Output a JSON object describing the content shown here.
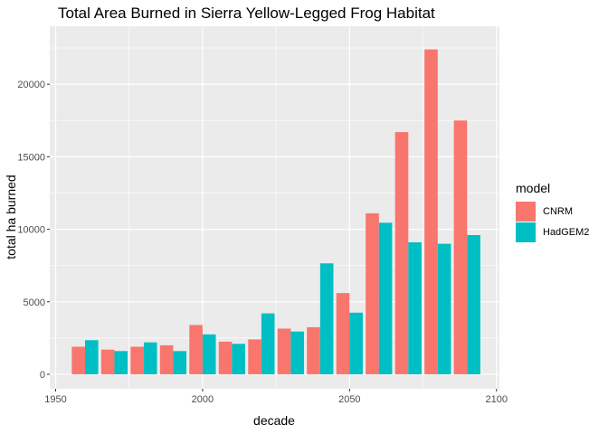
{
  "chart_data": {
    "type": "bar",
    "title": "Total Area Burned in Sierra Yellow-Legged Frog Habitat",
    "xlabel": "decade",
    "ylabel": "total ha burned",
    "legend_title": "model",
    "legend_position": "right",
    "grid": true,
    "xlim": [
      1948,
      2101
    ],
    "ylim": [
      -1000,
      24000
    ],
    "x_ticks": [
      1950,
      2000,
      2050,
      2100
    ],
    "y_ticks": [
      0,
      5000,
      10000,
      15000,
      20000
    ],
    "x_tick_labels": [
      "1950",
      "2000",
      "2050",
      "2100"
    ],
    "y_tick_labels": [
      "0",
      "5000",
      "10000",
      "15000",
      "20000"
    ],
    "x": [
      1960,
      1970,
      1980,
      1990,
      2000,
      2010,
      2020,
      2030,
      2040,
      2050,
      2060,
      2070,
      2080,
      2090
    ],
    "series": [
      {
        "name": "CNRM",
        "color": "#F8766D",
        "values": [
          1900,
          1700,
          1900,
          2000,
          3400,
          2250,
          2400,
          3150,
          3250,
          5600,
          11100,
          16700,
          22400,
          17500
        ]
      },
      {
        "name": "HadGEM2",
        "color": "#00BFC4",
        "values": [
          2350,
          1600,
          2200,
          1600,
          2750,
          2100,
          4200,
          2950,
          7650,
          4250,
          10450,
          9100,
          9000,
          9600
        ]
      }
    ]
  }
}
